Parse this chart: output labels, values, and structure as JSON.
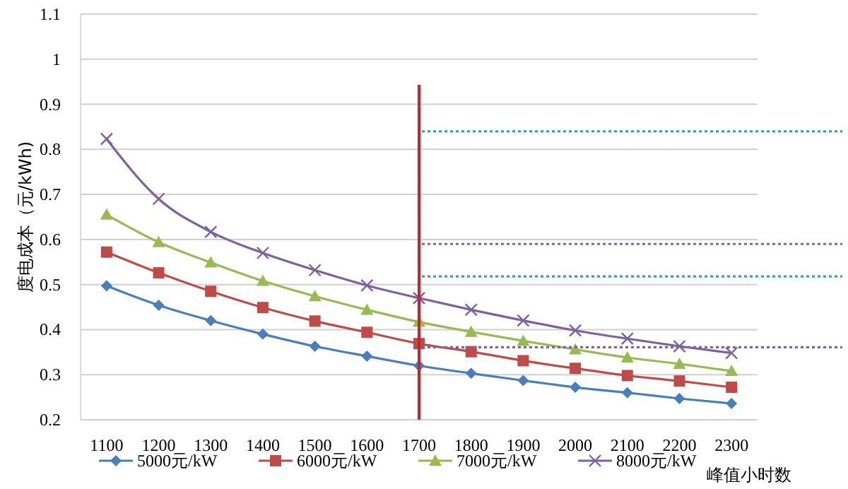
{
  "chart_data": {
    "type": "line",
    "xlabel": "峰值小时数",
    "ylabel": "度电成本（元/kWh)",
    "categories": [
      "1100",
      "1200",
      "1300",
      "1400",
      "1500",
      "1600",
      "1700",
      "1800",
      "1900",
      "2000",
      "2100",
      "2200",
      "2300"
    ],
    "series": [
      {
        "name": "5000元/kW",
        "color": "#4a7ebb",
        "marker": "diamond",
        "values": [
          0.497,
          0.454,
          0.42,
          0.39,
          0.363,
          0.341,
          0.32,
          0.303,
          0.287,
          0.272,
          0.26,
          0.247,
          0.236
        ]
      },
      {
        "name": "6000元/kW",
        "color": "#be4b48",
        "marker": "square",
        "values": [
          0.572,
          0.526,
          0.485,
          0.449,
          0.419,
          0.394,
          0.369,
          0.351,
          0.331,
          0.314,
          0.298,
          0.286,
          0.272
        ]
      },
      {
        "name": "7000元/kW",
        "color": "#98b954",
        "marker": "triangle",
        "values": [
          0.655,
          0.594,
          0.549,
          0.508,
          0.474,
          0.444,
          0.417,
          0.395,
          0.375,
          0.356,
          0.338,
          0.324,
          0.308
        ]
      },
      {
        "name": "8000元/kW",
        "color": "#7d60a0",
        "marker": "cross",
        "values": [
          0.823,
          0.69,
          0.617,
          0.57,
          0.532,
          0.498,
          0.47,
          0.444,
          0.42,
          0.398,
          0.38,
          0.363,
          0.348
        ]
      }
    ],
    "ylim": [
      0.2,
      1.1
    ],
    "yticks": [
      0.2,
      0.3,
      0.4,
      0.5,
      0.6,
      0.7,
      0.8,
      0.9,
      1,
      1.1
    ],
    "grid": "y",
    "legend": "bottom",
    "ref_lines": [
      {
        "axis": "x",
        "value": "1700",
        "color": "#c0272d",
        "line_style": "solid"
      },
      {
        "axis": "y",
        "value": 0.84,
        "color": "#3f9fb5",
        "line_style": "dotted"
      },
      {
        "axis": "y",
        "value": 0.59,
        "color": "#8064a2",
        "line_style": "dotted"
      },
      {
        "axis": "y",
        "value": 0.518,
        "color": "#3f9fb5",
        "line_style": "dotted"
      },
      {
        "axis": "y",
        "value": 0.361,
        "color": "#8064a2",
        "line_style": "dotted"
      }
    ]
  }
}
